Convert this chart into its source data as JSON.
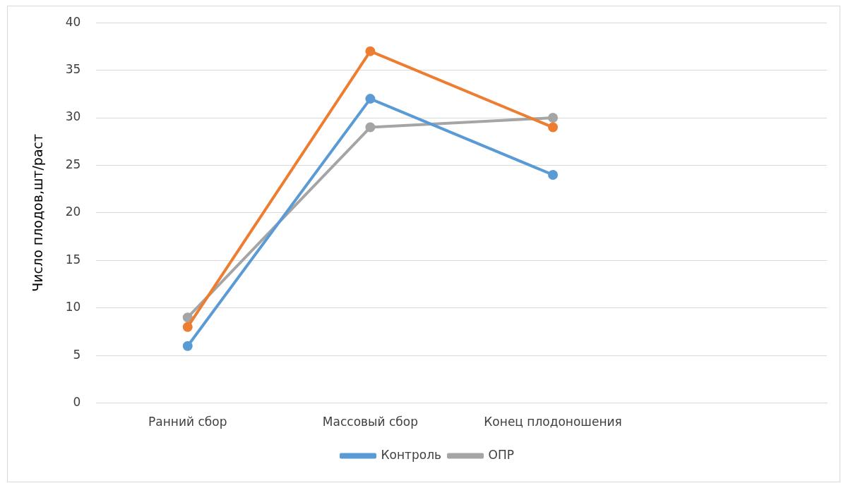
{
  "chart_data": {
    "type": "line",
    "ylabel": "Число плодов,шт/раст",
    "categories": [
      "Ранний сбор",
      "Массовый сбор",
      "Конец плодоношения",
      null
    ],
    "series": [
      {
        "name": "Контроль",
        "color": "#5b9bd5",
        "values": [
          6,
          32,
          24,
          null
        ]
      },
      {
        "color": "#ed7d31",
        "values": [
          8,
          37,
          29,
          null
        ]
      },
      {
        "name": "ОПР",
        "color": "#a5a5a5",
        "values": [
          9,
          29,
          30,
          null
        ]
      }
    ],
    "ylim": [
      0,
      40
    ],
    "yticks": [
      0,
      5,
      10,
      15,
      20,
      25,
      30,
      35,
      40
    ],
    "grid": "y",
    "legend": "bottom",
    "marker": "circle",
    "line_style": "solid"
  }
}
